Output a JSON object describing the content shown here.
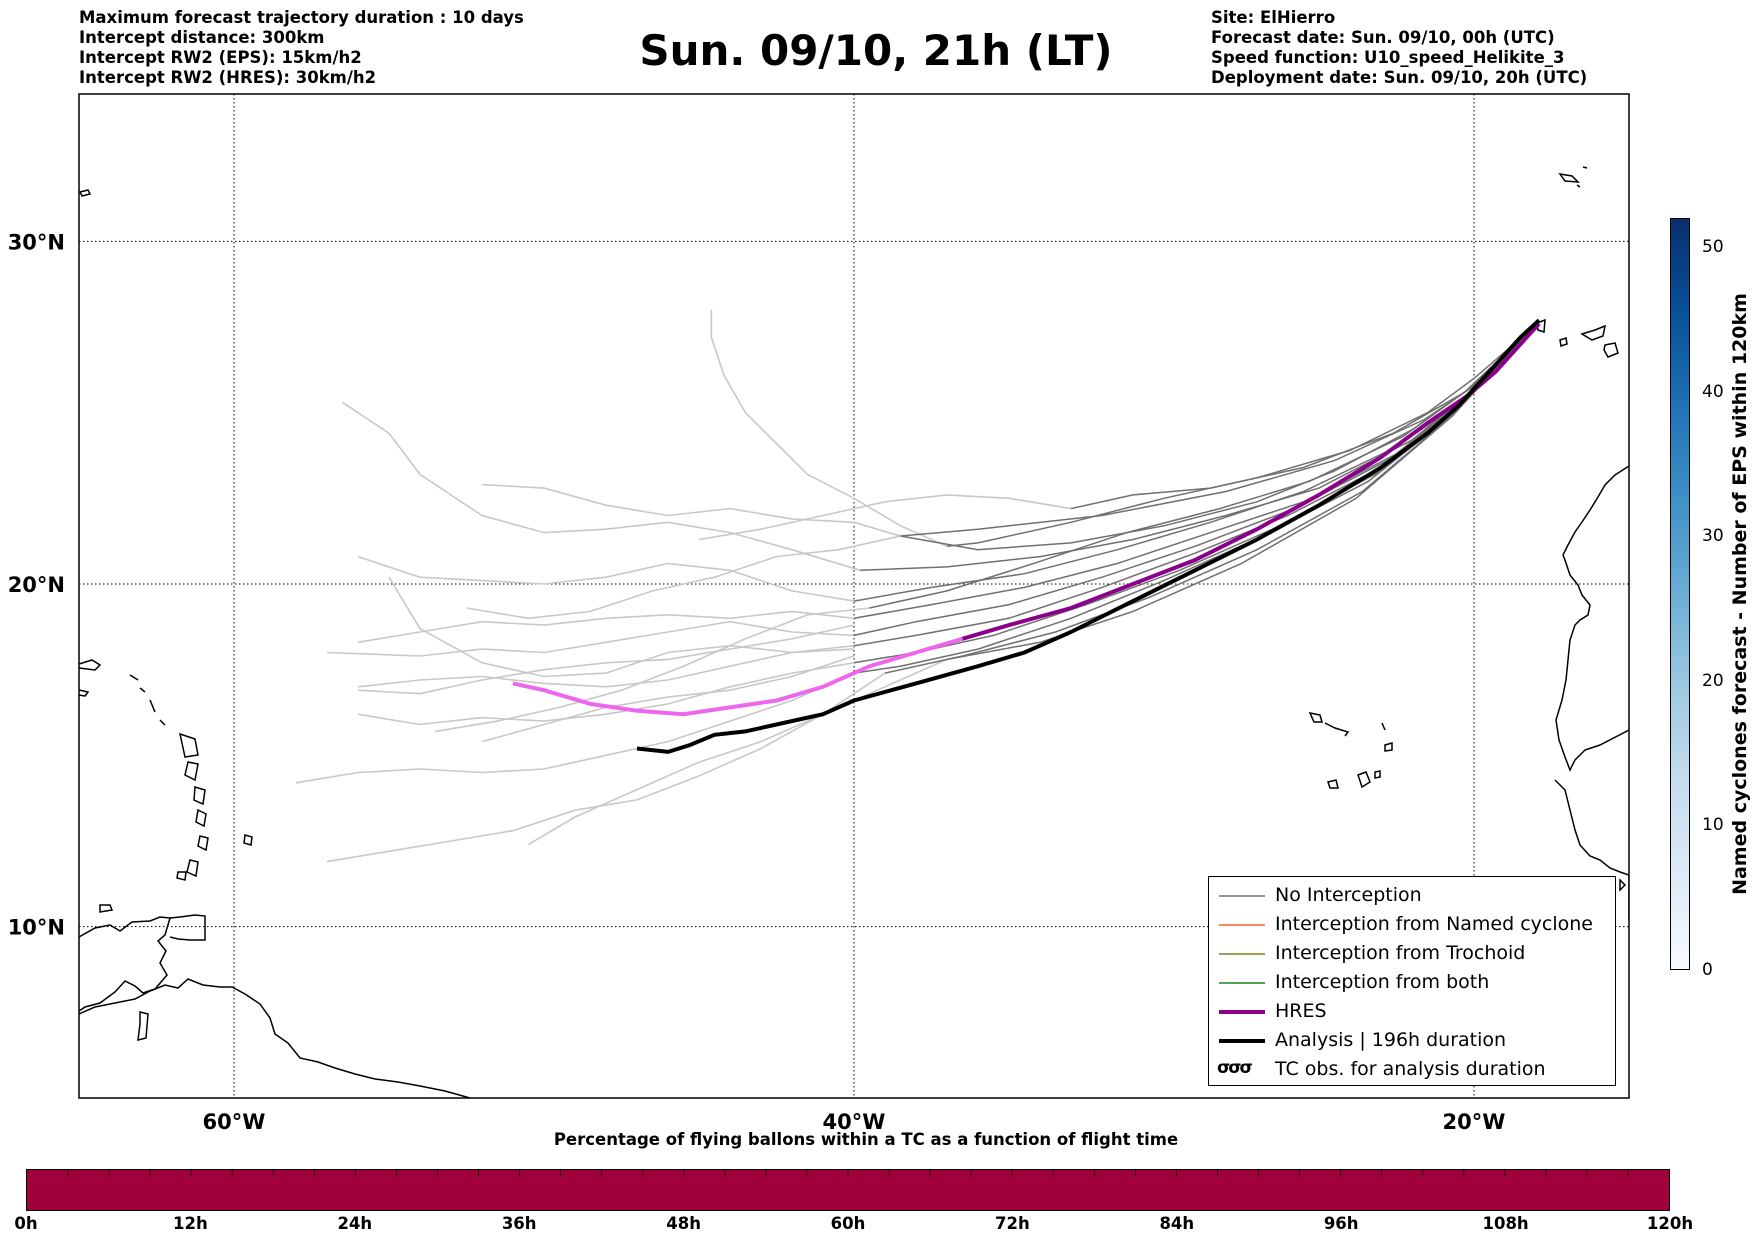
{
  "header_left": [
    "Maximum forecast trajectory duration : 10 days",
    "Intercept distance: 300km",
    "Intercept RW2 (EPS):  15km/h2",
    "Intercept RW2 (HRES): 30km/h2"
  ],
  "title": "Sun. 09/10, 21h (LT)",
  "header_right": [
    "Site: ElHierro",
    "Forecast date: Sun. 09/10, 00h (UTC)",
    "Speed function: U10_speed_Helikite_3",
    "Deployment date: Sun. 09/10, 20h (UTC)"
  ],
  "map": {
    "lon_range": [
      -65,
      -15
    ],
    "lat_range": [
      5,
      34.3
    ],
    "lon_ticks": [
      {
        "value": -60,
        "label": "60°W"
      },
      {
        "value": -40,
        "label": "40°W"
      },
      {
        "value": -20,
        "label": "20°W"
      }
    ],
    "lat_ticks": [
      {
        "value": 30,
        "label": "30°N"
      },
      {
        "value": 20,
        "label": "20°N"
      },
      {
        "value": 10,
        "label": "10°N"
      }
    ],
    "grid": "dotted",
    "colors": {
      "no_interception": "#707070",
      "early_track": "#c8c8c8",
      "named_cyclone": "#ff6020",
      "trochoid": "#808020",
      "both": "#208020",
      "hres": "#8b008b",
      "hres_early": "#ee66ee",
      "analysis": "#000000"
    }
  },
  "legend": {
    "items": [
      {
        "label": "No Interception",
        "color": "#707070",
        "style": "thin"
      },
      {
        "label": "Interception from Named cyclone",
        "color": "#ff6020",
        "style": "thin"
      },
      {
        "label": "Interception from Trochoid",
        "color": "#808020",
        "style": "thin"
      },
      {
        "label": "Interception from both",
        "color": "#208020",
        "style": "thin"
      },
      {
        "label": "HRES",
        "color": "#8b008b",
        "style": "thick"
      },
      {
        "label": "Analysis | 196h duration",
        "color": "#000000",
        "style": "thick"
      },
      {
        "label": "TC obs. for analysis duration",
        "color": "#000000",
        "style": "symbol"
      }
    ],
    "placement": "bottom-right"
  },
  "bottom_colorbar": {
    "title": "Percentage of flying ballons within a TC as a function of flight time",
    "color": "#a0003c",
    "ticks": [
      "0h",
      "12h",
      "24h",
      "36h",
      "48h",
      "60h",
      "72h",
      "84h",
      "96h",
      "108h",
      "120h"
    ]
  },
  "right_colorbar": {
    "title": "Named cyclones forecast - Number of EPS within 120km",
    "range": [
      0,
      52
    ],
    "ticks": [
      0,
      10,
      20,
      30,
      40,
      50
    ]
  },
  "tracks": {
    "analysis": [
      [
        -17.9,
        27.7
      ],
      [
        -18.5,
        27.2
      ],
      [
        -19.5,
        26.2
      ],
      [
        -20.5,
        25.2
      ],
      [
        -21.5,
        24.4
      ],
      [
        -23,
        23.4
      ],
      [
        -25,
        22.3
      ],
      [
        -27,
        21.3
      ],
      [
        -29,
        20.4
      ],
      [
        -31,
        19.5
      ],
      [
        -33,
        18.6
      ],
      [
        -34.5,
        18.0
      ],
      [
        -36,
        17.6
      ],
      [
        -38,
        17.1
      ],
      [
        -40,
        16.6
      ],
      [
        -41,
        16.2
      ],
      [
        -42.5,
        15.9
      ],
      [
        -43.5,
        15.7
      ],
      [
        -44.5,
        15.6
      ],
      [
        -45.3,
        15.3
      ],
      [
        -46,
        15.1
      ],
      [
        -47,
        15.2
      ]
    ],
    "hres": [
      [
        -17.9,
        27.6
      ],
      [
        -18.5,
        27.0
      ],
      [
        -19.3,
        26.2
      ],
      [
        -20.2,
        25.5
      ],
      [
        -21.5,
        24.7
      ],
      [
        -23,
        23.7
      ],
      [
        -25,
        22.6
      ],
      [
        -27,
        21.6
      ],
      [
        -29,
        20.7
      ],
      [
        -31,
        20.0
      ],
      [
        -33,
        19.3
      ],
      [
        -35,
        18.8
      ],
      [
        -36.5,
        18.4
      ]
    ],
    "hres_early": [
      [
        -36.5,
        18.4
      ],
      [
        -38,
        18.0
      ],
      [
        -39.5,
        17.6
      ],
      [
        -41,
        17.0
      ],
      [
        -42.5,
        16.6
      ],
      [
        -44,
        16.4
      ],
      [
        -45.5,
        16.2
      ],
      [
        -47,
        16.3
      ],
      [
        -48.5,
        16.5
      ],
      [
        -50,
        16.9
      ],
      [
        -51,
        17.1
      ]
    ],
    "eps_late": [
      [
        [
          -18.2,
          27.4
        ],
        [
          -20,
          25.8
        ],
        [
          -22,
          24.5
        ],
        [
          -24.5,
          23.3
        ],
        [
          -27,
          22.4
        ],
        [
          -30,
          21.7
        ],
        [
          -33,
          21.2
        ],
        [
          -36,
          21.0
        ],
        [
          -38.5,
          21.4
        ]
      ],
      [
        [
          -18.2,
          27.4
        ],
        [
          -20,
          25.7
        ],
        [
          -22,
          24.2
        ],
        [
          -25,
          22.8
        ],
        [
          -28,
          22.0
        ],
        [
          -31,
          21.3
        ],
        [
          -34,
          20.8
        ],
        [
          -37,
          20.5
        ],
        [
          -39.8,
          20.4
        ]
      ],
      [
        [
          -18.2,
          27.4
        ],
        [
          -20,
          25.6
        ],
        [
          -22.5,
          24.0
        ],
        [
          -25.5,
          22.7
        ],
        [
          -28.5,
          21.8
        ],
        [
          -31.5,
          21.0
        ],
        [
          -34.5,
          20.3
        ],
        [
          -37.5,
          19.9
        ],
        [
          -40,
          19.5
        ]
      ],
      [
        [
          -18.2,
          27.4
        ],
        [
          -20.2,
          25.5
        ],
        [
          -22.5,
          23.8
        ],
        [
          -25.5,
          22.4
        ],
        [
          -28.5,
          21.5
        ],
        [
          -31.5,
          20.6
        ],
        [
          -34.5,
          19.9
        ],
        [
          -37.5,
          19.4
        ],
        [
          -40,
          19.0
        ]
      ],
      [
        [
          -18.2,
          27.4
        ],
        [
          -20.2,
          25.4
        ],
        [
          -22.8,
          23.6
        ],
        [
          -25.8,
          22.2
        ],
        [
          -29,
          21.1
        ],
        [
          -32,
          20.2
        ],
        [
          -35,
          19.4
        ],
        [
          -38,
          18.9
        ],
        [
          -40,
          18.5
        ]
      ],
      [
        [
          -18.2,
          27.4
        ],
        [
          -20.3,
          25.3
        ],
        [
          -23,
          23.4
        ],
        [
          -26,
          22.0
        ],
        [
          -29,
          20.9
        ],
        [
          -32,
          19.9
        ],
        [
          -35,
          19.0
        ],
        [
          -38,
          18.5
        ],
        [
          -40,
          18.2
        ]
      ],
      [
        [
          -18.2,
          27.4
        ],
        [
          -20.4,
          25.2
        ],
        [
          -23.2,
          23.2
        ],
        [
          -26.5,
          21.6
        ],
        [
          -29.5,
          20.4
        ],
        [
          -32.5,
          19.4
        ],
        [
          -35.5,
          18.5
        ],
        [
          -38,
          18.0
        ],
        [
          -40,
          17.7
        ]
      ],
      [
        [
          -18.2,
          27.4
        ],
        [
          -20.5,
          25.1
        ],
        [
          -23.4,
          23.0
        ],
        [
          -26.8,
          21.4
        ],
        [
          -30,
          20.1
        ],
        [
          -33,
          19.0
        ],
        [
          -36,
          18.1
        ],
        [
          -38.5,
          17.6
        ],
        [
          -40,
          17.4
        ]
      ],
      [
        [
          -18.2,
          27.4
        ],
        [
          -20.6,
          25.0
        ],
        [
          -23.6,
          22.7
        ],
        [
          -27,
          21.0
        ],
        [
          -30.5,
          19.6
        ],
        [
          -33.5,
          18.6
        ],
        [
          -36.5,
          17.9
        ],
        [
          -39,
          17.4
        ]
      ],
      [
        [
          -18.2,
          27.4
        ],
        [
          -20,
          26.0
        ],
        [
          -21.5,
          25.0
        ],
        [
          -24,
          23.9
        ],
        [
          -27,
          23.1
        ],
        [
          -30,
          22.5
        ],
        [
          -33,
          21.8
        ],
        [
          -36,
          21.2
        ],
        [
          -37,
          21.1
        ]
      ],
      [
        [
          -18.2,
          27.4
        ],
        [
          -20.3,
          25.6
        ],
        [
          -22.6,
          24.4
        ],
        [
          -25.5,
          23.4
        ],
        [
          -28.5,
          22.8
        ],
        [
          -31,
          22.6
        ],
        [
          -33,
          22.2
        ]
      ],
      [
        [
          -18.2,
          27.4
        ],
        [
          -20.7,
          24.9
        ],
        [
          -23.8,
          22.5
        ],
        [
          -27.5,
          20.6
        ],
        [
          -31,
          19.2
        ],
        [
          -34,
          18.3
        ],
        [
          -37,
          17.8
        ]
      ],
      [
        [
          -18.2,
          27.4
        ],
        [
          -19.8,
          25.9
        ],
        [
          -21.6,
          24.8
        ],
        [
          -24.5,
          23.6
        ],
        [
          -28,
          22.7
        ],
        [
          -32,
          22.0
        ],
        [
          -36,
          21.6
        ],
        [
          -38.5,
          21.4
        ]
      ],
      [
        [
          -18.2,
          27.4
        ],
        [
          -20,
          25.8
        ],
        [
          -22.3,
          24.3
        ],
        [
          -25.3,
          23.0
        ],
        [
          -28.2,
          22.2
        ],
        [
          -31.2,
          21.5
        ],
        [
          -34.2,
          20.6
        ],
        [
          -37,
          19.8
        ],
        [
          -39.5,
          19.3
        ]
      ]
    ],
    "eps_early": [
      [
        [
          -38.5,
          21.4
        ],
        [
          -40,
          21.8
        ],
        [
          -42,
          21.9
        ],
        [
          -44,
          22.2
        ],
        [
          -46,
          22.0
        ],
        [
          -48,
          22.3
        ],
        [
          -50,
          22.8
        ],
        [
          -52,
          22.9
        ]
      ],
      [
        [
          -39.8,
          20.4
        ],
        [
          -42,
          21.0
        ],
        [
          -44,
          21.5
        ],
        [
          -46,
          21.8
        ],
        [
          -48,
          21.6
        ],
        [
          -50,
          21.5
        ],
        [
          -52,
          22.0
        ],
        [
          -54,
          23.2
        ],
        [
          -55,
          24.4
        ],
        [
          -56.5,
          25.3
        ]
      ],
      [
        [
          -40,
          19.5
        ],
        [
          -42,
          19.8
        ],
        [
          -44,
          20.4
        ],
        [
          -46,
          20.6
        ],
        [
          -48,
          20.2
        ],
        [
          -50,
          20.0
        ],
        [
          -52,
          20.1
        ],
        [
          -54,
          20.2
        ],
        [
          -56,
          20.8
        ]
      ],
      [
        [
          -40,
          19.0
        ],
        [
          -42,
          19.2
        ],
        [
          -44,
          19.0
        ],
        [
          -46,
          19.1
        ],
        [
          -48,
          19.0
        ],
        [
          -50,
          18.8
        ],
        [
          -52,
          18.9
        ],
        [
          -54,
          18.6
        ],
        [
          -56,
          18.3
        ]
      ],
      [
        [
          -40,
          18.5
        ],
        [
          -42,
          18.6
        ],
        [
          -44,
          18.9
        ],
        [
          -46,
          18.6
        ],
        [
          -48,
          18.3
        ],
        [
          -50,
          18.0
        ],
        [
          -52,
          18.1
        ],
        [
          -54,
          17.9
        ],
        [
          -57,
          18.0
        ]
      ],
      [
        [
          -40,
          18.2
        ],
        [
          -42,
          18.0
        ],
        [
          -44,
          17.6
        ],
        [
          -46,
          17.2
        ],
        [
          -48,
          17.0
        ],
        [
          -50,
          17.1
        ],
        [
          -52,
          17.3
        ],
        [
          -54,
          17.2
        ],
        [
          -56,
          17.0
        ]
      ],
      [
        [
          -40,
          17.7
        ],
        [
          -42,
          17.4
        ],
        [
          -44,
          17.0
        ],
        [
          -46,
          16.5
        ],
        [
          -48,
          16.2
        ],
        [
          -50,
          16.0
        ],
        [
          -52,
          16.1
        ],
        [
          -54,
          15.9
        ],
        [
          -56,
          16.2
        ]
      ],
      [
        [
          -40,
          17.4
        ],
        [
          -42,
          16.6
        ],
        [
          -44,
          16.0
        ],
        [
          -46,
          15.4
        ],
        [
          -48,
          15.0
        ],
        [
          -50,
          14.6
        ],
        [
          -52,
          14.5
        ],
        [
          -54,
          14.6
        ],
        [
          -56,
          14.5
        ],
        [
          -58,
          14.2
        ]
      ],
      [
        [
          -39,
          17.4
        ],
        [
          -41,
          16.2
        ],
        [
          -43,
          15.2
        ],
        [
          -45,
          14.4
        ],
        [
          -47,
          13.7
        ],
        [
          -49,
          13.4
        ],
        [
          -51,
          12.8
        ],
        [
          -53,
          12.5
        ],
        [
          -55,
          12.2
        ],
        [
          -57,
          11.9
        ]
      ],
      [
        [
          -37,
          21.1
        ],
        [
          -38.5,
          21.7
        ],
        [
          -40,
          22.5
        ],
        [
          -41.5,
          23.2
        ],
        [
          -42.5,
          24.1
        ],
        [
          -43.5,
          25.0
        ],
        [
          -44.2,
          26.1
        ],
        [
          -44.6,
          27.2
        ],
        [
          -44.6,
          28.0
        ]
      ],
      [
        [
          -33,
          22.2
        ],
        [
          -35,
          22.5
        ],
        [
          -37,
          22.6
        ],
        [
          -39,
          22.4
        ],
        [
          -41,
          22.0
        ],
        [
          -43,
          21.6
        ],
        [
          -45,
          21.3
        ]
      ],
      [
        [
          -37,
          17.8
        ],
        [
          -39,
          17.0
        ],
        [
          -41,
          16.2
        ],
        [
          -43,
          15.4
        ],
        [
          -45,
          14.8
        ],
        [
          -47,
          14.0
        ],
        [
          -49,
          13.2
        ],
        [
          -50.5,
          12.4
        ]
      ],
      [
        [
          -38.5,
          21.4
        ],
        [
          -40.5,
          21.0
        ],
        [
          -42.5,
          20.8
        ],
        [
          -44.5,
          20.2
        ],
        [
          -46.5,
          19.8
        ],
        [
          -48.5,
          19.2
        ],
        [
          -50.5,
          19.0
        ],
        [
          -52.5,
          19.3
        ]
      ],
      [
        [
          -39.5,
          19.3
        ],
        [
          -41.5,
          19.1
        ],
        [
          -43.5,
          18.4
        ],
        [
          -45.5,
          17.6
        ],
        [
          -47.5,
          16.9
        ],
        [
          -49.5,
          16.4
        ],
        [
          -51.5,
          16.0
        ],
        [
          -53.5,
          15.7
        ]
      ],
      [
        [
          -40,
          18.8
        ],
        [
          -42,
          18.4
        ],
        [
          -44,
          18.1
        ],
        [
          -46,
          17.8
        ],
        [
          -48,
          17.7
        ],
        [
          -50,
          17.5
        ],
        [
          -52,
          17.2
        ],
        [
          -54,
          16.8
        ],
        [
          -56,
          16.9
        ]
      ],
      [
        [
          -40,
          17.9
        ],
        [
          -42,
          17.3
        ],
        [
          -44,
          16.9
        ],
        [
          -46,
          16.7
        ],
        [
          -48,
          16.4
        ],
        [
          -50,
          15.9
        ],
        [
          -52,
          15.4
        ]
      ],
      [
        [
          -40,
          18.1
        ],
        [
          -42,
          18.0
        ],
        [
          -44,
          18.2
        ],
        [
          -46,
          18.0
        ],
        [
          -48,
          17.4
        ],
        [
          -50,
          17.3
        ],
        [
          -52,
          17.7
        ],
        [
          -54,
          18.7
        ],
        [
          -55,
          20.2
        ]
      ]
    ]
  }
}
